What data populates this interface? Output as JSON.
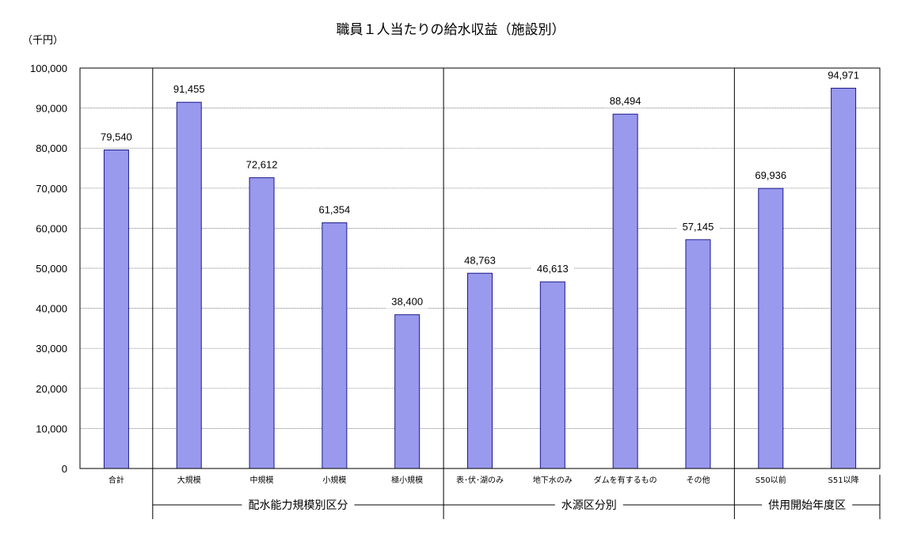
{
  "chart_data": {
    "type": "bar",
    "title": "職員１人当たりの給水収益（施設別）",
    "unit_label": "（千円）",
    "ylim": [
      0,
      100000
    ],
    "ytick_values": [
      0,
      10000,
      20000,
      30000,
      40000,
      50000,
      60000,
      70000,
      80000,
      90000,
      100000
    ],
    "ytick_labels": [
      "0",
      "10,000",
      "20,000",
      "30,000",
      "40,000",
      "50,000",
      "60,000",
      "70,000",
      "80,000",
      "90,000",
      "100,000"
    ],
    "grid": true,
    "legend": "none",
    "categories": [
      "合計",
      "大規模",
      "中規模",
      "小規模",
      "極小規模",
      "表･伏･湖のみ",
      "地下水のみ",
      "ダムを有するもの",
      "その他",
      "S50以前",
      "S51以降"
    ],
    "values": [
      79540,
      91455,
      72612,
      61354,
      38400,
      48763,
      46613,
      88494,
      57145,
      69936,
      94971
    ],
    "value_labels": [
      "79,540",
      "91,455",
      "72,612",
      "61,354",
      "38,400",
      "48,763",
      "46,613",
      "88,494",
      "57,145",
      "69,936",
      "94,971"
    ],
    "groups": [
      {
        "label": "配水能力規模別区分",
        "start": 1,
        "end": 4
      },
      {
        "label": "水源区分別",
        "start": 5,
        "end": 8
      },
      {
        "label": "供用開始年度区",
        "start": 9,
        "end": 10
      }
    ],
    "bar_color": "#9999ee",
    "bar_stroke": "#1a1a8c"
  }
}
